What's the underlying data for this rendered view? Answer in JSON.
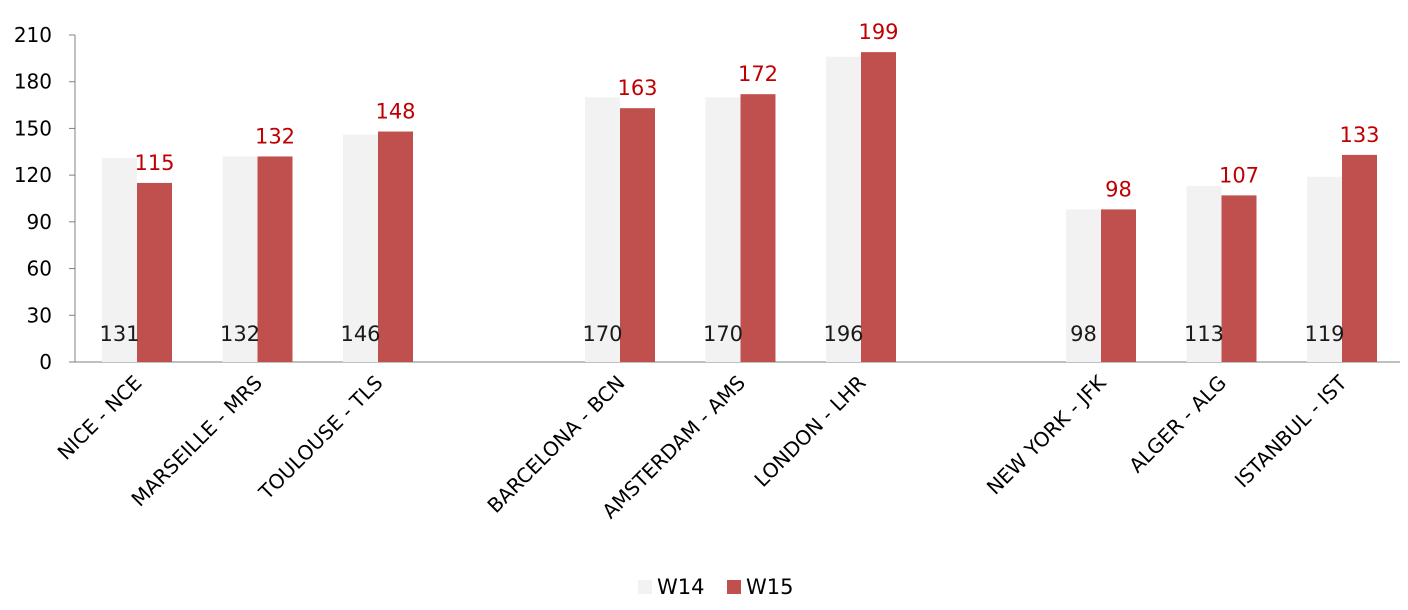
{
  "chart_data": {
    "type": "bar",
    "title": "",
    "xlabel": "",
    "ylabel": "",
    "ylim": [
      0,
      210
    ],
    "yticks": [
      0,
      30,
      60,
      90,
      120,
      150,
      180,
      210
    ],
    "grid": false,
    "legend_position": "bottom",
    "groups": [
      [
        "NICE - NCE",
        "MARSEILLE - MRS",
        "TOULOUSE - TLS"
      ],
      [
        "BARCELONA - BCN",
        "AMSTERDAM - AMS",
        "LONDON - LHR"
      ],
      [
        "NEW YORK - JFK",
        "ALGER - ALG",
        "ISTANBUL - IST"
      ]
    ],
    "categories": [
      "NICE - NCE",
      "MARSEILLE - MRS",
      "TOULOUSE - TLS",
      "BARCELONA - BCN",
      "AMSTERDAM - AMS",
      "LONDON - LHR",
      "NEW YORK - JFK",
      "ALGER - ALG",
      "ISTANBUL - IST"
    ],
    "series": [
      {
        "name": "W14",
        "color": "#f2f2f2",
        "label_color": "#1a1a1a",
        "values": [
          131,
          132,
          146,
          170,
          170,
          196,
          98,
          113,
          119
        ]
      },
      {
        "name": "W15",
        "color": "#c0504d",
        "label_color": "#c00000",
        "values": [
          115,
          132,
          148,
          163,
          172,
          199,
          98,
          107,
          133
        ]
      }
    ]
  }
}
